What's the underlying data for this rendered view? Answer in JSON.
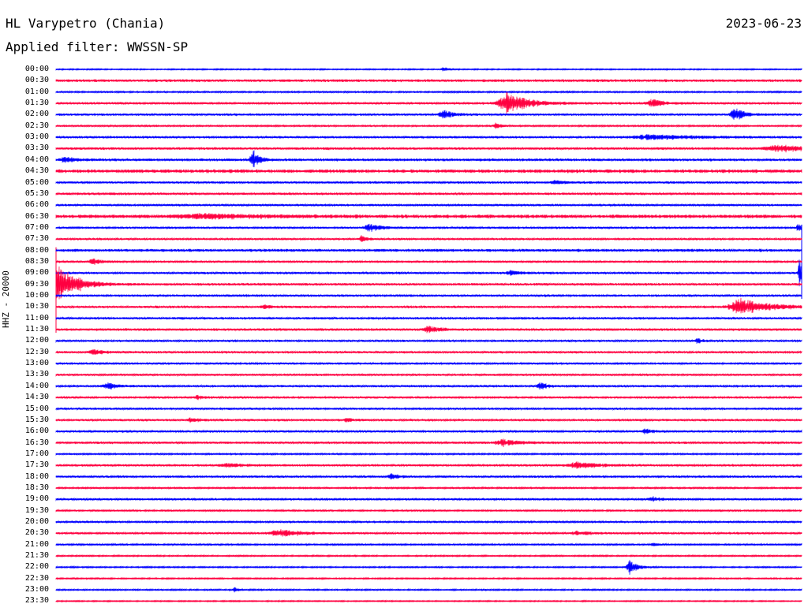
{
  "header": {
    "station": "HL Varypetro (Chania)",
    "date": "2023-06-23",
    "filter": "Applied filter: WWSSN-SP"
  },
  "channel_label": "HHZ - 20000",
  "colors": {
    "even": "#0000ff",
    "odd": "#ff0040",
    "text": "#000000"
  },
  "chart_data": {
    "type": "line",
    "title": "HL Varypetro (Chania)",
    "subtitle": "Applied filter: WWSSN-SP",
    "ylabel": "HHZ - 20000",
    "grid": false,
    "rows": [
      {
        "label": "00:00",
        "noise": 0.6,
        "events": [
          {
            "x": 0.52,
            "amp": 2,
            "w": 0.006
          }
        ]
      },
      {
        "label": "00:30",
        "noise": 1.2,
        "events": []
      },
      {
        "label": "01:00",
        "noise": 0.8,
        "events": []
      },
      {
        "label": "01:30",
        "noise": 1.0,
        "events": [
          {
            "x": 0.605,
            "amp": 11,
            "w": 0.022
          },
          {
            "x": 0.8,
            "amp": 4,
            "w": 0.012
          }
        ]
      },
      {
        "label": "02:00",
        "noise": 1.0,
        "events": [
          {
            "x": 0.52,
            "amp": 4,
            "w": 0.012
          },
          {
            "x": 0.91,
            "amp": 7,
            "w": 0.01
          }
        ]
      },
      {
        "label": "02:30",
        "noise": 0.8,
        "events": [
          {
            "x": 0.59,
            "amp": 3,
            "w": 0.006
          }
        ]
      },
      {
        "label": "03:00",
        "noise": 1.0,
        "events": [
          {
            "x": 0.8,
            "amp": 2.5,
            "w": 0.05
          }
        ]
      },
      {
        "label": "03:30",
        "noise": 1.1,
        "events": [
          {
            "x": 0.97,
            "amp": 3.5,
            "w": 0.03
          }
        ]
      },
      {
        "label": "04:00",
        "noise": 1.2,
        "events": [
          {
            "x": 0.012,
            "amp": 3,
            "w": 0.01
          },
          {
            "x": 0.264,
            "amp": 11,
            "w": 0.006
          }
        ]
      },
      {
        "label": "04:30",
        "noise": 1.6,
        "events": []
      },
      {
        "label": "05:00",
        "noise": 1.0,
        "events": [
          {
            "x": 0.67,
            "amp": 2,
            "w": 0.01
          }
        ]
      },
      {
        "label": "05:30",
        "noise": 1.1,
        "events": []
      },
      {
        "label": "06:00",
        "noise": 1.0,
        "events": []
      },
      {
        "label": "06:30",
        "noise": 1.6,
        "events": [
          {
            "x": 0.2,
            "amp": 2,
            "w": 0.06
          }
        ]
      },
      {
        "label": "07:00",
        "noise": 0.9,
        "events": [
          {
            "x": 0.42,
            "amp": 3.5,
            "w": 0.015
          },
          {
            "x": 0.995,
            "amp": 5,
            "w": 0.003
          }
        ]
      },
      {
        "label": "07:30",
        "noise": 0.9,
        "events": [
          {
            "x": 0.41,
            "amp": 3,
            "w": 0.006
          }
        ]
      },
      {
        "label": "08:00",
        "noise": 1.3,
        "events": []
      },
      {
        "label": "08:30",
        "noise": 0.9,
        "events": [
          {
            "x": 0.05,
            "amp": 3,
            "w": 0.01
          }
        ]
      },
      {
        "label": "09:00",
        "noise": 1.0,
        "events": [
          {
            "x": 0.61,
            "amp": 2.5,
            "w": 0.01
          },
          {
            "x": 0.997,
            "amp": 14,
            "w": 0.003
          }
        ]
      },
      {
        "label": "09:30",
        "noise": 1.1,
        "events": [
          {
            "x": 0.006,
            "amp": 18,
            "w": 0.018
          }
        ]
      },
      {
        "label": "10:00",
        "noise": 1.0,
        "events": []
      },
      {
        "label": "10:30",
        "noise": 1.0,
        "events": [
          {
            "x": 0.28,
            "amp": 2,
            "w": 0.01
          },
          {
            "x": 0.92,
            "amp": 8,
            "w": 0.03
          }
        ]
      },
      {
        "label": "11:00",
        "noise": 1.0,
        "events": []
      },
      {
        "label": "11:30",
        "noise": 1.1,
        "events": [
          {
            "x": 0.5,
            "amp": 3,
            "w": 0.015
          }
        ]
      },
      {
        "label": "12:00",
        "noise": 0.9,
        "events": [
          {
            "x": 0.86,
            "amp": 2.5,
            "w": 0.006
          }
        ]
      },
      {
        "label": "12:30",
        "noise": 1.0,
        "events": [
          {
            "x": 0.05,
            "amp": 3,
            "w": 0.012
          }
        ]
      },
      {
        "label": "13:00",
        "noise": 0.9,
        "events": []
      },
      {
        "label": "13:30",
        "noise": 0.9,
        "events": []
      },
      {
        "label": "14:00",
        "noise": 1.0,
        "events": [
          {
            "x": 0.07,
            "amp": 3,
            "w": 0.012
          },
          {
            "x": 0.65,
            "amp": 3.5,
            "w": 0.008
          }
        ]
      },
      {
        "label": "14:30",
        "noise": 0.9,
        "events": [
          {
            "x": 0.19,
            "amp": 2,
            "w": 0.006
          }
        ]
      },
      {
        "label": "15:00",
        "noise": 0.9,
        "events": []
      },
      {
        "label": "15:30",
        "noise": 1.0,
        "events": [
          {
            "x": 0.18,
            "amp": 3,
            "w": 0.008
          },
          {
            "x": 0.39,
            "amp": 2.5,
            "w": 0.006
          }
        ]
      },
      {
        "label": "16:00",
        "noise": 1.0,
        "events": [
          {
            "x": 0.79,
            "amp": 3,
            "w": 0.008
          }
        ]
      },
      {
        "label": "16:30",
        "noise": 1.0,
        "events": [
          {
            "x": 0.6,
            "amp": 3,
            "w": 0.02
          }
        ]
      },
      {
        "label": "17:00",
        "noise": 0.8,
        "events": []
      },
      {
        "label": "17:30",
        "noise": 1.0,
        "events": [
          {
            "x": 0.7,
            "amp": 3.5,
            "w": 0.02
          },
          {
            "x": 0.23,
            "amp": 1.8,
            "w": 0.02
          }
        ]
      },
      {
        "label": "18:00",
        "noise": 1.0,
        "events": [
          {
            "x": 0.45,
            "amp": 3,
            "w": 0.008
          }
        ]
      },
      {
        "label": "18:30",
        "noise": 0.8,
        "events": []
      },
      {
        "label": "19:00",
        "noise": 0.9,
        "events": [
          {
            "x": 0.8,
            "amp": 2.5,
            "w": 0.01
          }
        ]
      },
      {
        "label": "19:30",
        "noise": 0.8,
        "events": []
      },
      {
        "label": "20:00",
        "noise": 0.9,
        "events": []
      },
      {
        "label": "20:30",
        "noise": 0.9,
        "events": [
          {
            "x": 0.3,
            "amp": 3.5,
            "w": 0.025
          },
          {
            "x": 0.7,
            "amp": 2,
            "w": 0.015
          }
        ]
      },
      {
        "label": "21:00",
        "noise": 0.8,
        "events": [
          {
            "x": 0.8,
            "amp": 2,
            "w": 0.004
          }
        ]
      },
      {
        "label": "21:30",
        "noise": 0.7,
        "events": []
      },
      {
        "label": "22:00",
        "noise": 0.7,
        "events": [
          {
            "x": 0.77,
            "amp": 7,
            "w": 0.008
          }
        ]
      },
      {
        "label": "22:30",
        "noise": 0.7,
        "events": []
      },
      {
        "label": "23:00",
        "noise": 0.7,
        "events": [
          {
            "x": 0.24,
            "amp": 2,
            "w": 0.004
          }
        ]
      },
      {
        "label": "23:30",
        "noise": 0.6,
        "events": []
      }
    ]
  }
}
